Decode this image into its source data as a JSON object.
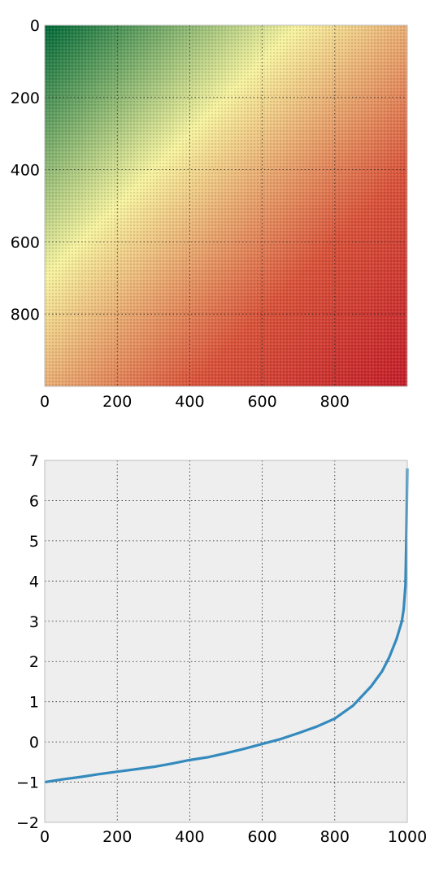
{
  "chart_data": [
    {
      "type": "heatmap",
      "title": "",
      "xlabel": "",
      "ylabel": "",
      "xlim": [
        0,
        1000
      ],
      "ylim": [
        1000,
        0
      ],
      "x_ticks": [
        "0",
        "200",
        "400",
        "600",
        "800"
      ],
      "y_ticks": [
        "0",
        "200",
        "400",
        "600",
        "800"
      ],
      "grid": true,
      "colormap": "RdYlGn (reversed)",
      "colors": {
        "low": "#006837",
        "mid": "#f7f3a0",
        "high": "#c41e2a"
      },
      "description_values": {
        "value_top_left": 0.0,
        "value_bottom_right": 1.0,
        "pattern": "value increases with row index and column index (sorted covariance-like matrix)"
      }
    },
    {
      "type": "line",
      "title": "",
      "xlabel": "",
      "ylabel": "",
      "xlim": [
        0,
        1000
      ],
      "ylim": [
        -2,
        7
      ],
      "x_ticks": [
        "0",
        "200",
        "400",
        "600",
        "800",
        "1000"
      ],
      "y_ticks": [
        "−2",
        "−1",
        "0",
        "1",
        "2",
        "3",
        "4",
        "5",
        "6",
        "7"
      ],
      "grid": true,
      "line_color": "#348abd",
      "background": "#eeeeee",
      "series": [
        {
          "x": [
            0,
            50,
            100,
            150,
            200,
            250,
            300,
            350,
            400,
            450,
            500,
            550,
            600,
            650,
            700,
            750,
            800,
            850,
            900,
            930,
            950,
            970,
            985,
            990,
            995,
            998,
            1000
          ],
          "values": [
            -1.0,
            -0.93,
            -0.87,
            -0.8,
            -0.74,
            -0.68,
            -0.62,
            -0.54,
            -0.45,
            -0.38,
            -0.28,
            -0.17,
            -0.05,
            0.07,
            0.22,
            0.38,
            0.58,
            0.9,
            1.38,
            1.75,
            2.1,
            2.55,
            3.0,
            3.3,
            3.9,
            5.4,
            6.8
          ]
        }
      ]
    }
  ]
}
